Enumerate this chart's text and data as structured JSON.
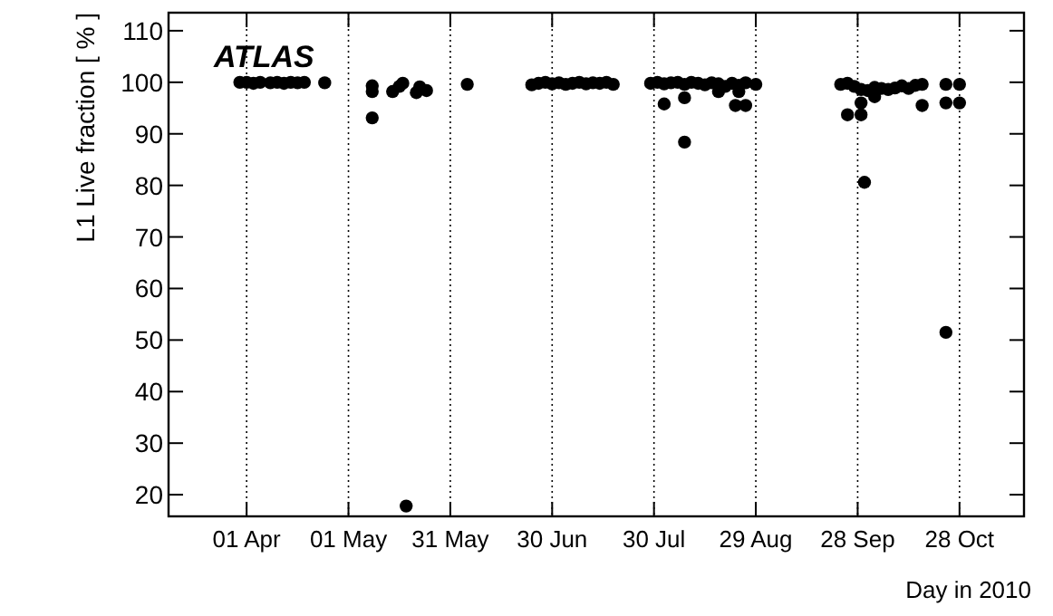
{
  "chart_data": {
    "type": "scatter",
    "xlabel": "Day in 2010",
    "ylabel": "L1 Live fraction [ % ]",
    "annotations": [
      "ATLAS"
    ],
    "xlim": [
      "2010-03-09",
      "2010-11-16"
    ],
    "ylim": [
      15.8,
      113.5
    ],
    "xticks": [
      {
        "value": "2010-04-01",
        "label": "01 Apr"
      },
      {
        "value": "2010-05-01",
        "label": "01 May"
      },
      {
        "value": "2010-05-31",
        "label": "31 May"
      },
      {
        "value": "2010-06-30",
        "label": "30 Jun"
      },
      {
        "value": "2010-07-30",
        "label": "30 Jul"
      },
      {
        "value": "2010-08-29",
        "label": "29 Aug"
      },
      {
        "value": "2010-09-28",
        "label": "28 Sep"
      },
      {
        "value": "2010-10-28",
        "label": "28 Oct"
      }
    ],
    "yticks": [
      20,
      30,
      40,
      50,
      60,
      70,
      80,
      90,
      100,
      110
    ],
    "grid": "x",
    "marker": "circle",
    "series": [
      {
        "color": "#000000",
        "x": [
          "2010-03-30",
          "2010-04-01",
          "2010-04-03",
          "2010-04-05",
          "2010-04-08",
          "2010-04-10",
          "2010-04-12",
          "2010-04-14",
          "2010-04-16",
          "2010-04-18",
          "2010-04-24",
          "2010-05-08",
          "2010-05-08",
          "2010-05-08",
          "2010-05-14",
          "2010-05-16",
          "2010-05-17",
          "2010-05-18",
          "2010-05-21",
          "2010-05-22",
          "2010-05-24",
          "2010-06-05",
          "2010-06-24",
          "2010-06-26",
          "2010-06-28",
          "2010-06-30",
          "2010-07-02",
          "2010-07-04",
          "2010-07-06",
          "2010-07-08",
          "2010-07-10",
          "2010-07-12",
          "2010-07-14",
          "2010-07-16",
          "2010-07-18",
          "2010-07-29",
          "2010-07-31",
          "2010-08-02",
          "2010-08-02",
          "2010-08-04",
          "2010-08-06",
          "2010-08-08",
          "2010-08-08",
          "2010-08-08",
          "2010-08-10",
          "2010-08-12",
          "2010-08-14",
          "2010-08-16",
          "2010-08-18",
          "2010-08-18",
          "2010-08-20",
          "2010-08-22",
          "2010-08-23",
          "2010-08-24",
          "2010-08-24",
          "2010-08-26",
          "2010-08-26",
          "2010-08-29",
          "2010-09-23",
          "2010-09-25",
          "2010-09-25",
          "2010-09-27",
          "2010-09-29",
          "2010-09-29",
          "2010-09-29",
          "2010-09-30",
          "2010-10-01",
          "2010-10-03",
          "2010-10-03",
          "2010-10-05",
          "2010-10-07",
          "2010-10-09",
          "2010-10-11",
          "2010-10-13",
          "2010-10-15",
          "2010-10-17",
          "2010-10-17",
          "2010-10-24",
          "2010-10-24",
          "2010-10-24",
          "2010-10-28",
          "2010-10-28"
        ],
        "values": [
          100,
          100,
          99.8,
          100,
          99.9,
          100,
          99.8,
          100,
          99.9,
          100,
          99.9,
          99.3,
          98.2,
          93.1,
          98.2,
          99.2,
          99.8,
          17.8,
          98.0,
          99.1,
          98.4,
          99.6,
          99.5,
          99.8,
          100,
          99.7,
          99.9,
          99.6,
          99.8,
          100,
          99.7,
          99.9,
          99.8,
          100,
          99.6,
          99.8,
          100,
          99.7,
          95.8,
          99.9,
          100,
          99.6,
          97,
          88.4,
          100,
          99.8,
          99.5,
          99.9,
          99.7,
          98.2,
          99.2,
          99.8,
          95.5,
          99.4,
          98.2,
          99.9,
          95.5,
          99.6,
          99.6,
          99.8,
          93.7,
          99.2,
          98.6,
          93.7,
          96,
          80.6,
          98.4,
          99,
          97.2,
          98.8,
          98.6,
          98.9,
          99.3,
          98.8,
          99.4,
          99.6,
          95.5,
          99.6,
          96,
          51.5,
          99.6,
          96
        ]
      }
    ]
  }
}
